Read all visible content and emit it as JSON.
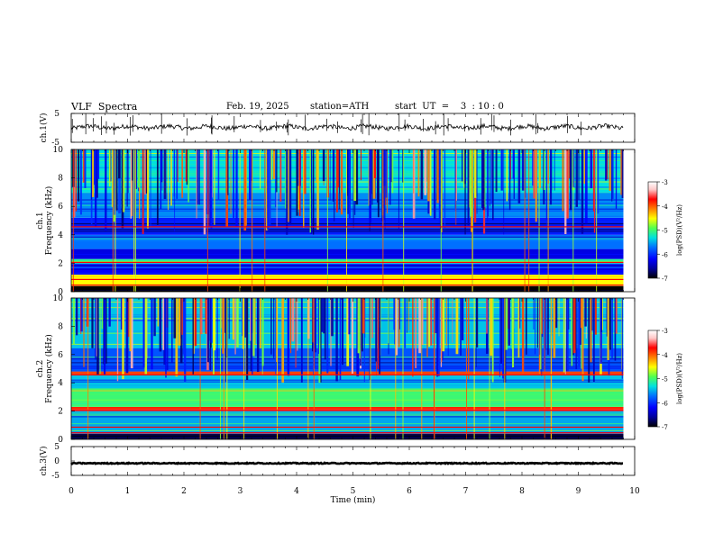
{
  "header": {
    "title": "VLF  Spectra",
    "date": "Feb. 19, 2025",
    "station": "station=ATH",
    "start": "start  UT  =    3  : 10 : 0"
  },
  "colors": {
    "colormap": [
      "#000000",
      "#00009a",
      "#0000ff",
      "#0070ff",
      "#00e0e0",
      "#50ff50",
      "#ffff00",
      "#ff8000",
      "#ff0000",
      "#ffc8c8",
      "#ffffff"
    ]
  },
  "chart_data": [
    {
      "type": "line",
      "name": "ch1-waveform",
      "ylabel": "ch.1(V)",
      "ylim": [
        -5,
        5
      ],
      "yticks": [
        "5",
        "-5"
      ],
      "x_range": [
        0,
        10
      ],
      "data_end": 9.8,
      "baseline_value": 0.2
    },
    {
      "type": "heatmap",
      "name": "ch1-spectrogram",
      "ylabel": "ch.1\nFrequency  (kHz)",
      "ylim": [
        0,
        10
      ],
      "yticks": [
        "0",
        "2",
        "4",
        "6",
        "8",
        "10"
      ],
      "colorbar": {
        "label": "log(PSD)(V²/Hz)",
        "range": [
          -7,
          -3
        ],
        "ticks": [
          "-3",
          "-4",
          "-5",
          "-6",
          "-7"
        ]
      },
      "bands_khz": [
        {
          "from": 0.0,
          "to": 0.4,
          "level": -7
        },
        {
          "from": 0.4,
          "to": 1.2,
          "level": -4.6
        },
        {
          "from": 1.2,
          "to": 2.0,
          "level": -6.2
        },
        {
          "from": 2.0,
          "to": 2.3,
          "level": -5.2
        },
        {
          "from": 2.3,
          "to": 3.0,
          "level": -6.3
        },
        {
          "from": 3.0,
          "to": 4.0,
          "level": -5.8
        },
        {
          "from": 4.0,
          "to": 5.2,
          "level": -6.1
        },
        {
          "from": 5.2,
          "to": 7.0,
          "level": -5.7
        },
        {
          "from": 7.0,
          "to": 10.0,
          "level": -5.4
        }
      ]
    },
    {
      "type": "heatmap",
      "name": "ch2-spectrogram",
      "ylabel": "ch.2\nFrequency  (kHz)",
      "ylim": [
        0,
        10
      ],
      "yticks": [
        "0",
        "2",
        "4",
        "6",
        "8",
        "10"
      ],
      "colorbar": {
        "label": "log(PSD)(V²/Hz)",
        "range": [
          -7,
          -3
        ],
        "ticks": [
          "-3",
          "-4",
          "-5",
          "-6",
          "-7"
        ]
      },
      "bands_khz": [
        {
          "from": 0.0,
          "to": 0.4,
          "level": -6.8
        },
        {
          "from": 0.4,
          "to": 2.0,
          "level": -5.6
        },
        {
          "from": 2.0,
          "to": 2.3,
          "level": -3.9
        },
        {
          "from": 2.3,
          "to": 3.6,
          "level": -5.1
        },
        {
          "from": 3.6,
          "to": 4.6,
          "level": -5.5
        },
        {
          "from": 4.6,
          "to": 4.8,
          "level": -4.0
        },
        {
          "from": 4.8,
          "to": 6.5,
          "level": -5.9
        },
        {
          "from": 6.5,
          "to": 10.0,
          "level": -5.5
        }
      ]
    },
    {
      "type": "line",
      "name": "ch3-waveform",
      "ylabel": "ch.3(V)",
      "ylim": [
        -5,
        5
      ],
      "yticks": [
        "5",
        "0",
        "-5"
      ],
      "x_range": [
        0,
        10
      ],
      "data_end": 9.8,
      "baseline_value": -0.8,
      "xlabel": "Time  (min)",
      "xticks": [
        "0",
        "1",
        "2",
        "3",
        "4",
        "5",
        "6",
        "7",
        "8",
        "9",
        "10"
      ]
    }
  ]
}
